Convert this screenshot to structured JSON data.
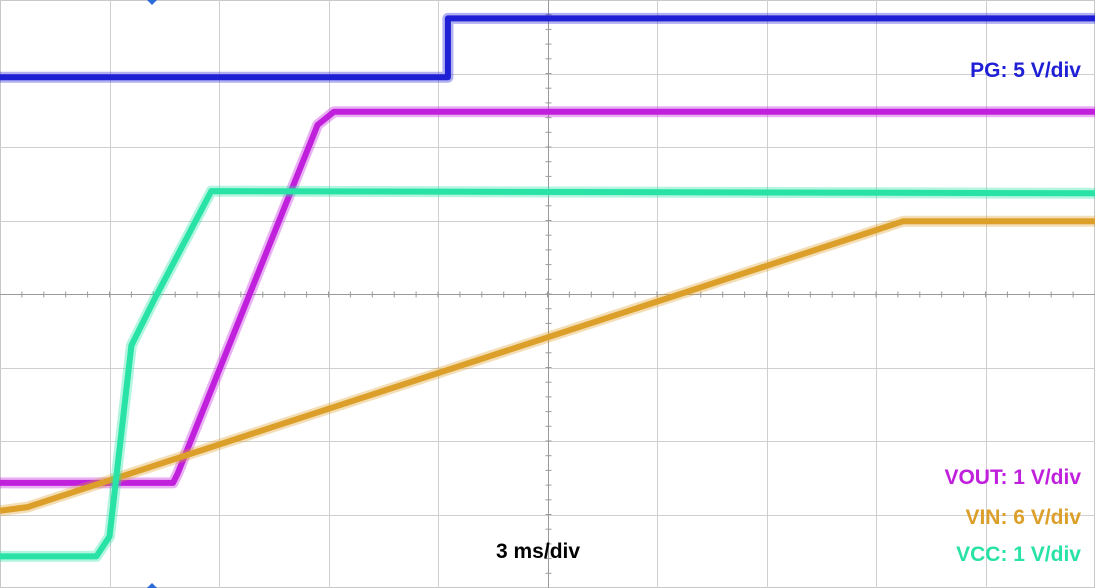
{
  "chart_data": {
    "type": "line",
    "time_base_label": "3 ms/div",
    "x_unit": "div",
    "y_unit": "div",
    "grid": true,
    "x_divisions": 10,
    "y_divisions": 8,
    "series": [
      {
        "name": "PG: 5 V/div",
        "color": "#1f1fd6",
        "points": [
          [
            0,
            6.95
          ],
          [
            4.09,
            6.95
          ],
          [
            4.09,
            7.75
          ],
          [
            10,
            7.75
          ]
        ]
      },
      {
        "name": "VOUT: 1 V/div",
        "color": "#c020dc",
        "points": [
          [
            0,
            1.43
          ],
          [
            1.58,
            1.43
          ],
          [
            1.62,
            1.55
          ],
          [
            2.9,
            6.3
          ],
          [
            3.05,
            6.48
          ],
          [
            10,
            6.48
          ]
        ]
      },
      {
        "name": "VIN: 6 V/div",
        "color": "#dca02a",
        "points": [
          [
            0,
            1.05
          ],
          [
            0.25,
            1.1
          ],
          [
            8.25,
            4.99
          ],
          [
            10,
            4.99
          ]
        ]
      },
      {
        "name": "VCC: 1 V/div",
        "color": "#28e2a6",
        "points": [
          [
            0,
            0.43
          ],
          [
            0.88,
            0.43
          ],
          [
            1.0,
            0.7
          ],
          [
            1.2,
            3.3
          ],
          [
            1.4,
            3.9
          ],
          [
            1.93,
            5.4
          ],
          [
            10,
            5.37
          ]
        ]
      }
    ]
  }
}
